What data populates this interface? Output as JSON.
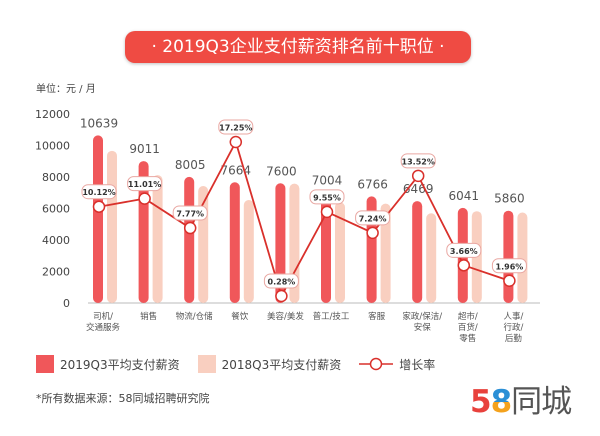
{
  "title": "· 2019Q3企业支付薪资排名前十职位 ·",
  "unit_label": "单位：元 / 月",
  "source": "*所有数据来源：58同城招聘研究院",
  "logo": {
    "five": "5",
    "eight": "8",
    "text": "同城",
    "colors": {
      "five": "#e8413c",
      "eight_top": "#2a8fd6",
      "eight_bottom": "#f4a21d",
      "text": "#555555"
    }
  },
  "legend": {
    "s2019": "2019Q3平均支付薪资",
    "s2018": "2018Q3平均支付薪资",
    "growth": "增长率"
  },
  "chart_data": {
    "type": "bar",
    "title": "2019Q3企业支付薪资排名前十职位",
    "ylabel": "单位：元 / 月",
    "ylim": [
      0,
      12000
    ],
    "yticks": [
      0,
      2000,
      4000,
      6000,
      8000,
      10000,
      12000
    ],
    "grid": false,
    "legend_placement": "bottom",
    "categories": [
      [
        "司机/",
        "交通服务"
      ],
      [
        "销售"
      ],
      [
        "物流/仓储"
      ],
      [
        "餐饮"
      ],
      [
        "美容/美发"
      ],
      [
        "普工/技工"
      ],
      [
        "客服"
      ],
      [
        "家政/保洁/",
        "安保"
      ],
      [
        "超市/",
        "百货/",
        "零售"
      ],
      [
        "人事/",
        "行政/",
        "后勤"
      ]
    ],
    "series": [
      {
        "name": "2019Q3平均支付薪资",
        "color": "#f0575a",
        "values": [
          10639,
          9011,
          8005,
          7664,
          7600,
          7004,
          6766,
          6469,
          6041,
          5860
        ],
        "labels_shown": true
      },
      {
        "name": "2018Q3平均支付薪资",
        "color": "#f9cfc0",
        "values": [
          9661,
          8117,
          7428,
          6536,
          7579,
          6393,
          6309,
          5699,
          5828,
          5747
        ]
      },
      {
        "name": "增长率",
        "type": "line",
        "color": "#d9302b",
        "unit": "%",
        "values": [
          10.12,
          11.01,
          7.77,
          17.25,
          0.28,
          9.55,
          7.24,
          13.52,
          3.66,
          1.96
        ]
      }
    ]
  }
}
